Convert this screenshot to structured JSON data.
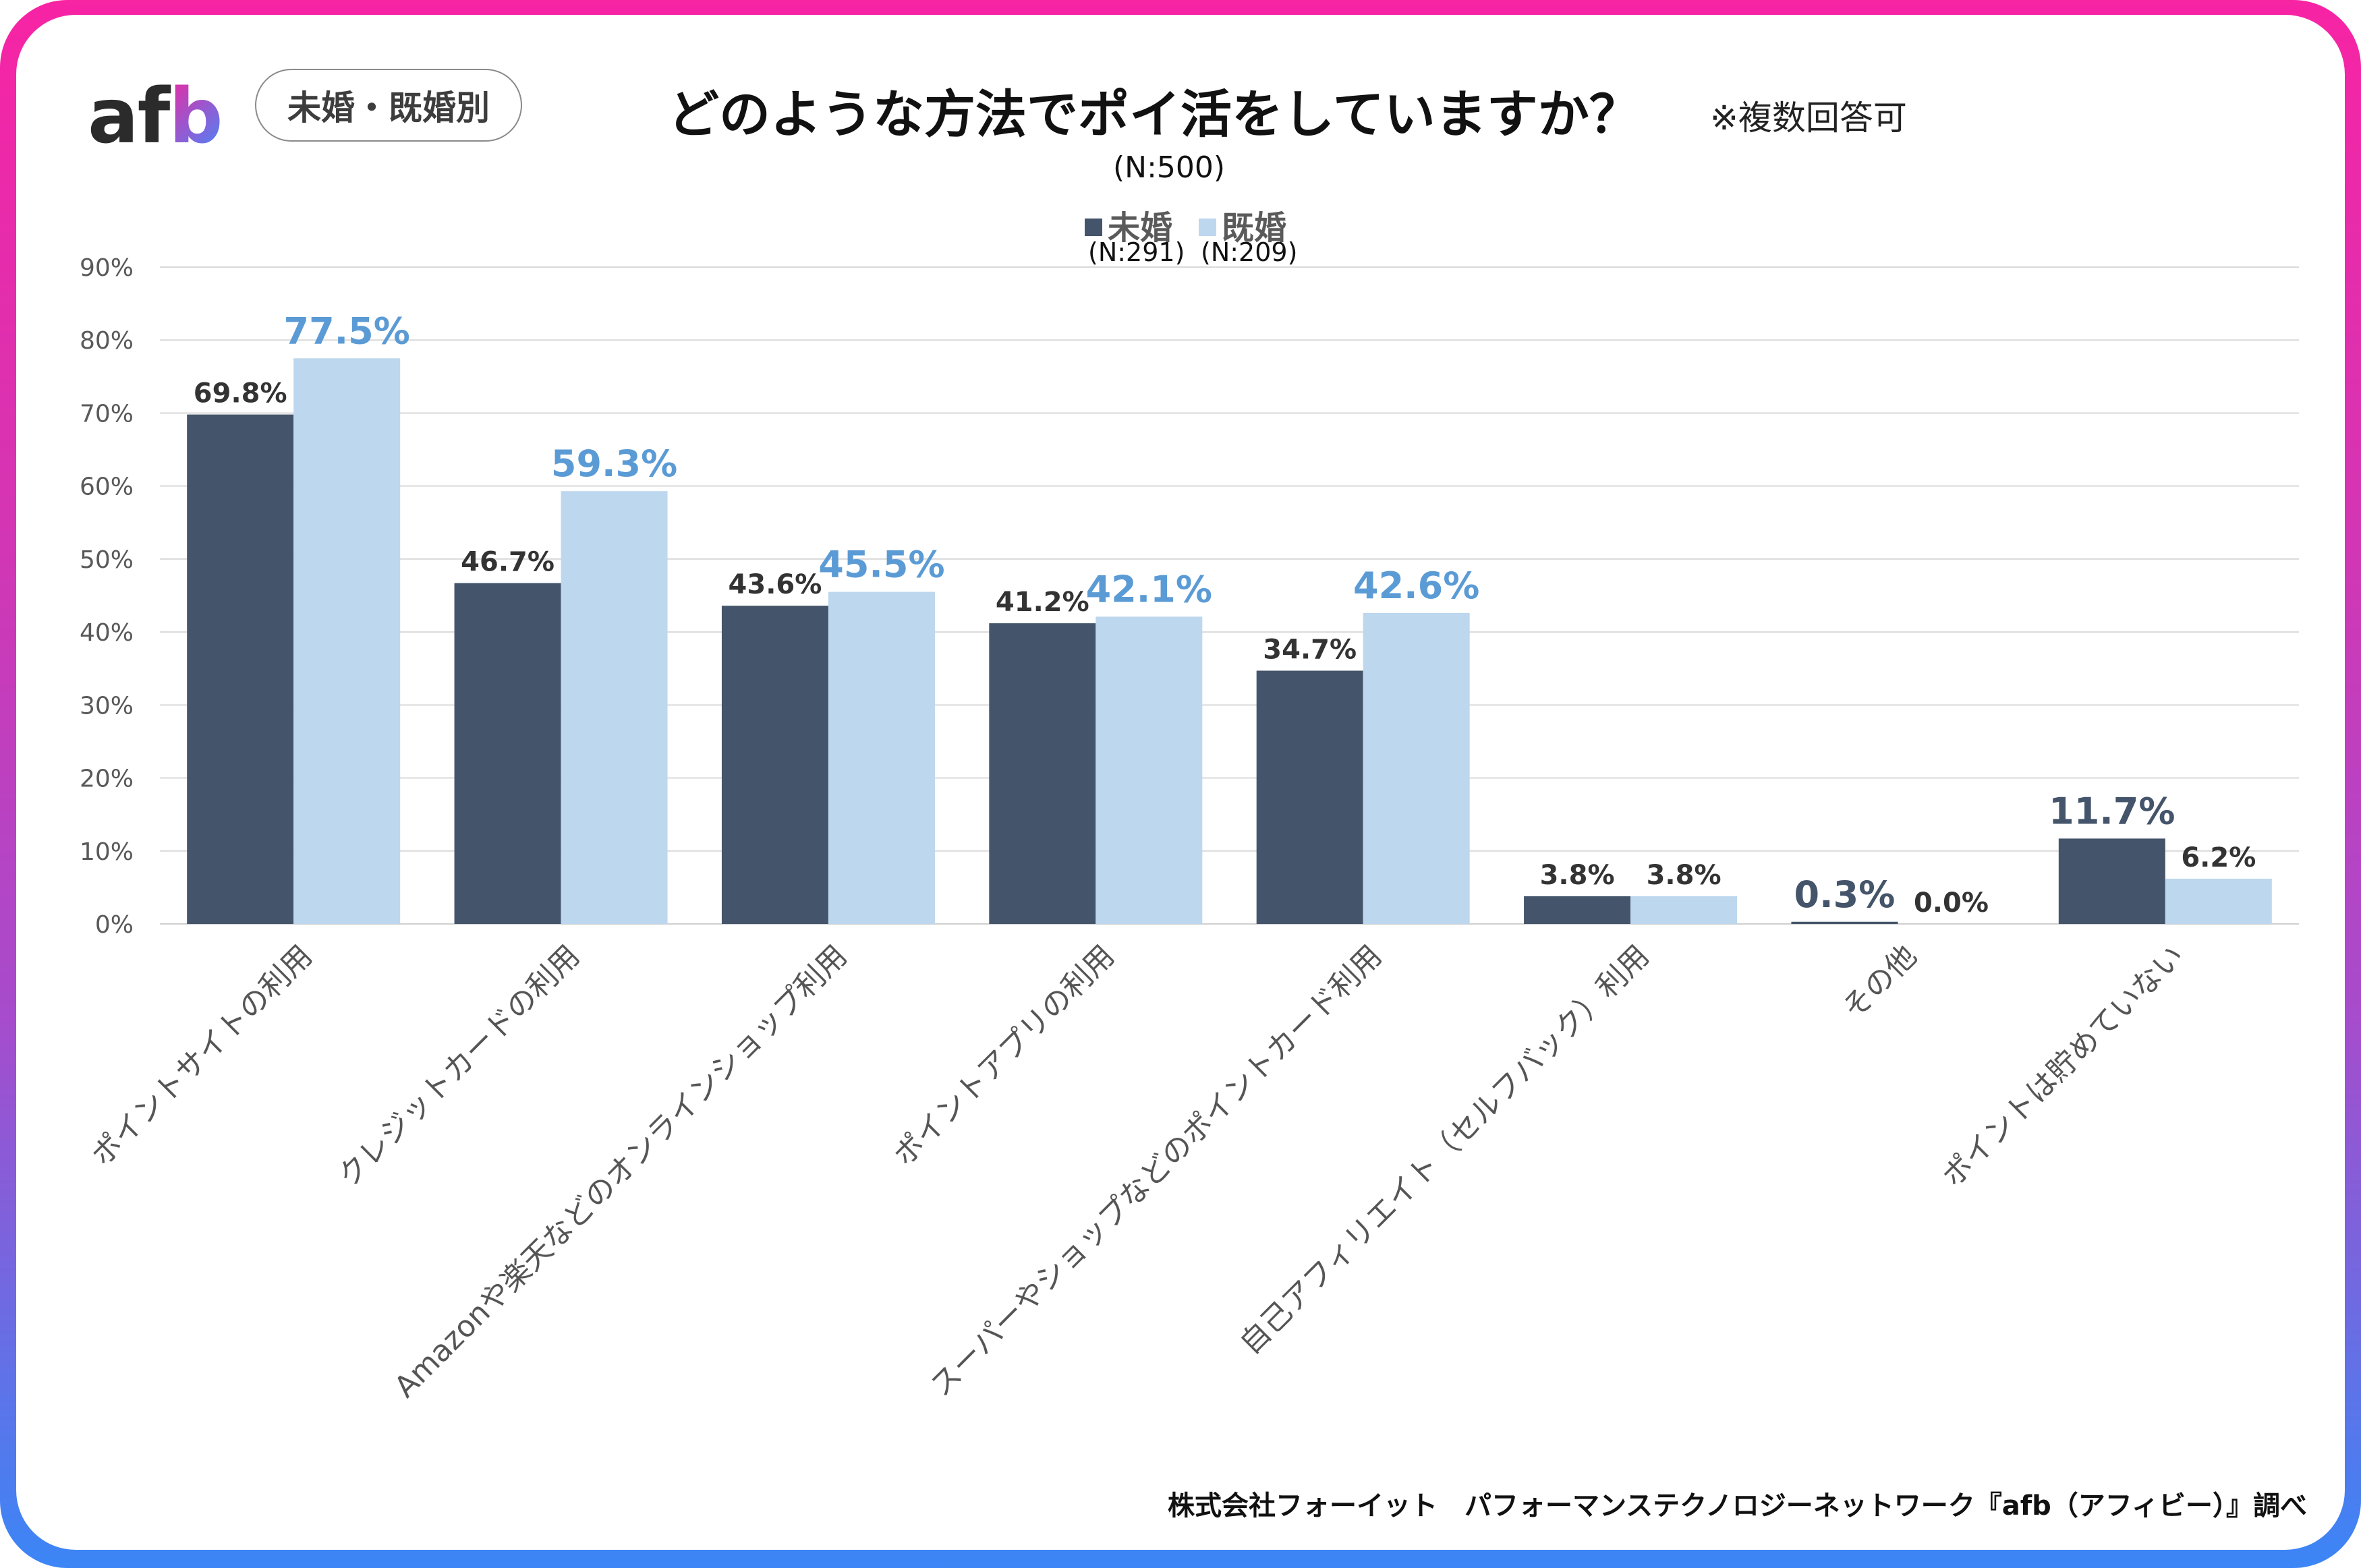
{
  "header": {
    "logo": "afb",
    "segment_pill": "未婚・既婚別",
    "title": "どのような方法でポイ活をしていますか？",
    "note": "※複数回答可",
    "sample_total": "(N:500)"
  },
  "legend": [
    {
      "name": "未婚",
      "n": "(N:291)",
      "color": "#44546a"
    },
    {
      "name": "既婚",
      "n": "(N:209)",
      "color": "#bdd7ee"
    }
  ],
  "footer": "株式会社フォーイット　パフォーマンステクノロジーネットワーク『afb（アフィビー）』調べ",
  "colors": {
    "series_unmarried": "#44546a",
    "series_married": "#bdd7ee",
    "highlight_blue": "#5b9bd5",
    "highlight_navy": "#44546a",
    "label_dark": "#333333",
    "gridline": "#d9d9d9",
    "frame_top": "#f724a4",
    "frame_bottom": "#3b86f6"
  },
  "chart_data": {
    "type": "bar",
    "title": "どのような方法でポイ活をしていますか？",
    "xlabel": "",
    "ylabel": "",
    "ylim": [
      0,
      90
    ],
    "yticks": [
      "0%",
      "10%",
      "20%",
      "30%",
      "40%",
      "50%",
      "60%",
      "70%",
      "80%",
      "90%"
    ],
    "grid": true,
    "legend_position": "top-center",
    "categories": [
      "ポイントサイトの利用",
      "クレジットカードの利用",
      "Amazonや楽天などのオンラインショップ利用",
      "ポイントアプリの利用",
      "スーパーやショップなどのポイントカード利用",
      "自己アフィリエイト（セルフバック）利用",
      "その他",
      "ポイントは貯めていない"
    ],
    "series": [
      {
        "name": "未婚",
        "values": [
          69.8,
          46.7,
          43.6,
          41.2,
          34.7,
          3.8,
          0.3,
          11.7
        ],
        "labels": [
          "69.8%",
          "46.7%",
          "43.6%",
          "41.2%",
          "34.7%",
          "3.8%",
          "0.3%",
          "11.7%"
        ],
        "highlight": [
          false,
          false,
          false,
          false,
          false,
          false,
          true,
          true
        ]
      },
      {
        "name": "既婚",
        "values": [
          77.5,
          59.3,
          45.5,
          42.1,
          42.6,
          3.8,
          0.0,
          6.2
        ],
        "labels": [
          "77.5%",
          "59.3%",
          "45.5%",
          "42.1%",
          "42.6%",
          "3.8%",
          "0.0%",
          "6.2%"
        ],
        "highlight": [
          true,
          true,
          true,
          true,
          true,
          false,
          false,
          false
        ]
      }
    ]
  }
}
